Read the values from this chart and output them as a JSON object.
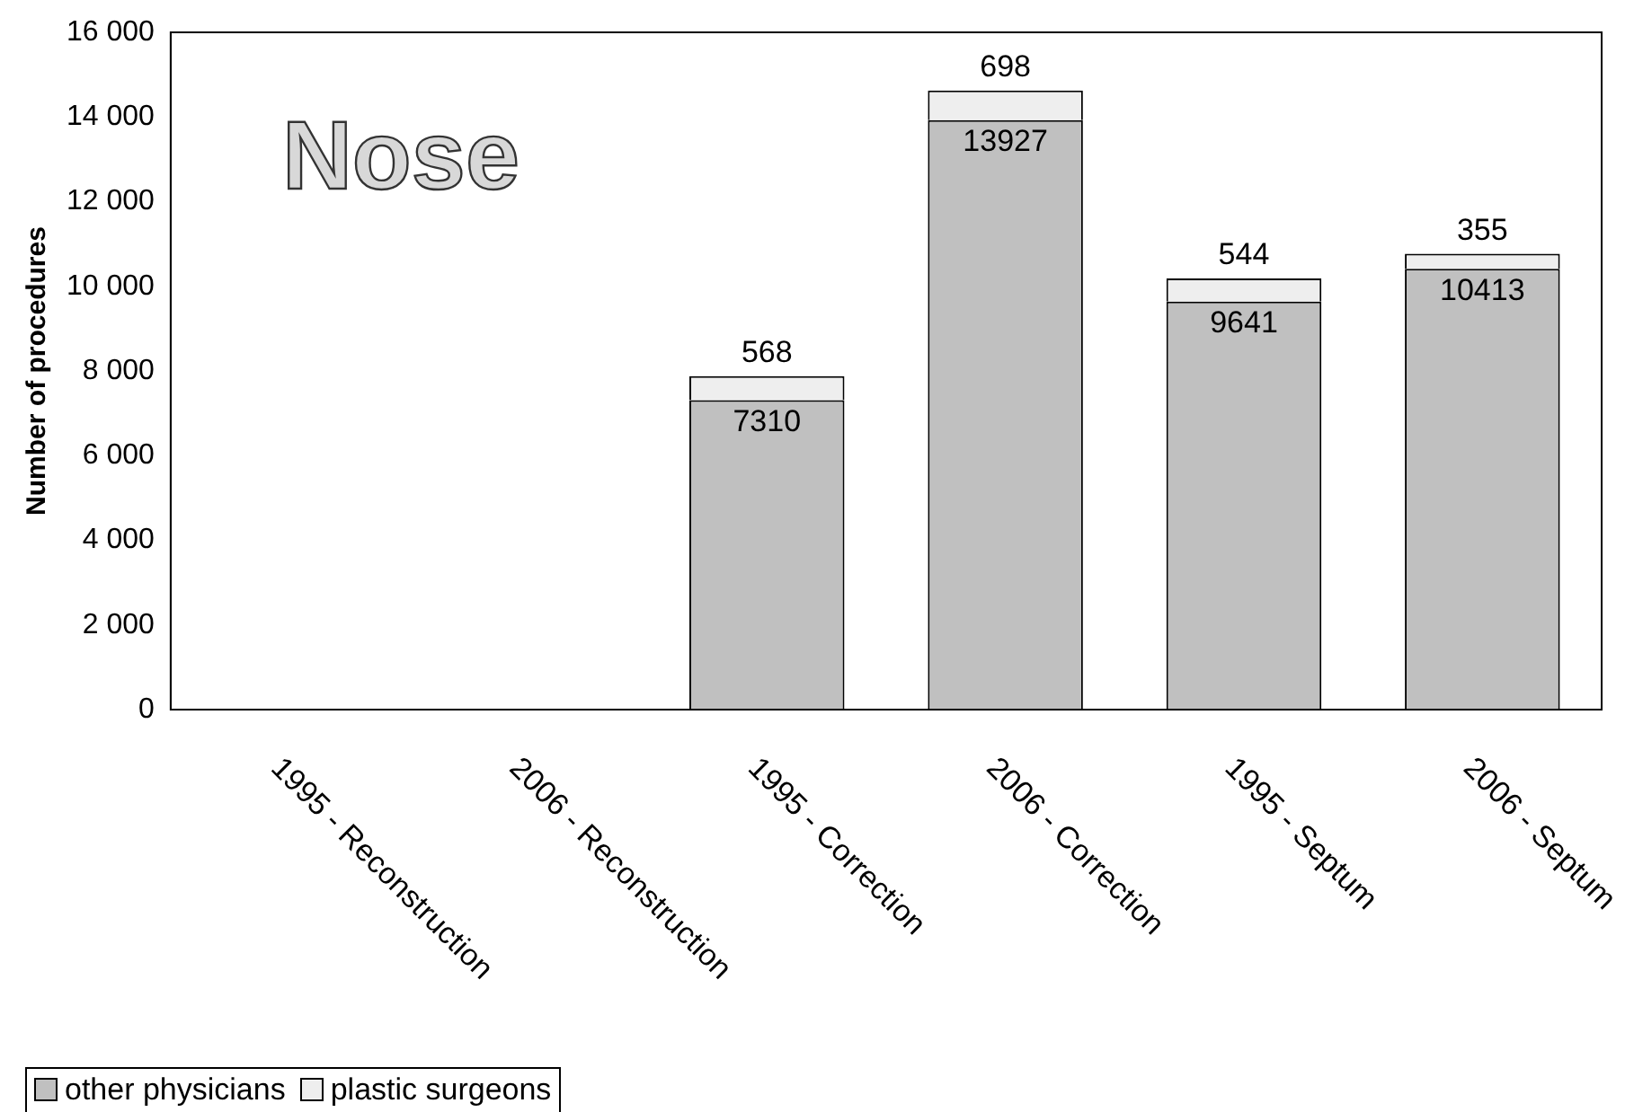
{
  "chart_data": {
    "type": "bar",
    "title": "Nose",
    "ylabel": "Number of procedures",
    "categories": [
      "1995 - Reconstruction",
      "2006 - Reconstruction",
      "1995 - Correction",
      "2006 - Correction",
      "1995 - Septum",
      "2006 - Septum"
    ],
    "stacked": true,
    "series": [
      {
        "name": "other physicians",
        "color": "#c0c0c0",
        "values": [
          0,
          0,
          7310,
          13927,
          9641,
          10413
        ],
        "value_labels": [
          null,
          null,
          "7310",
          "13927",
          "9641",
          "10413"
        ]
      },
      {
        "name": "plastic surgeons",
        "color": "#eeeeee",
        "values": [
          0,
          0,
          568,
          698,
          544,
          355
        ],
        "value_labels": [
          null,
          null,
          "568",
          "698",
          "544",
          "355"
        ]
      }
    ],
    "ylim": [
      0,
      16000
    ],
    "yticks": [
      0,
      {
        "value": 2000,
        "label": "2 000"
      },
      {
        "value": 4000,
        "label": "4 000"
      },
      {
        "value": 6000,
        "label": "6 000"
      },
      {
        "value": 8000,
        "label": "8 000"
      },
      {
        "value": 10000,
        "label": "10 000"
      },
      {
        "value": 12000,
        "label": "12 000"
      },
      {
        "value": 14000,
        "label": "14 000"
      },
      {
        "value": 16000,
        "label": "16 000"
      }
    ],
    "grid": false,
    "legend": "bottom left"
  }
}
